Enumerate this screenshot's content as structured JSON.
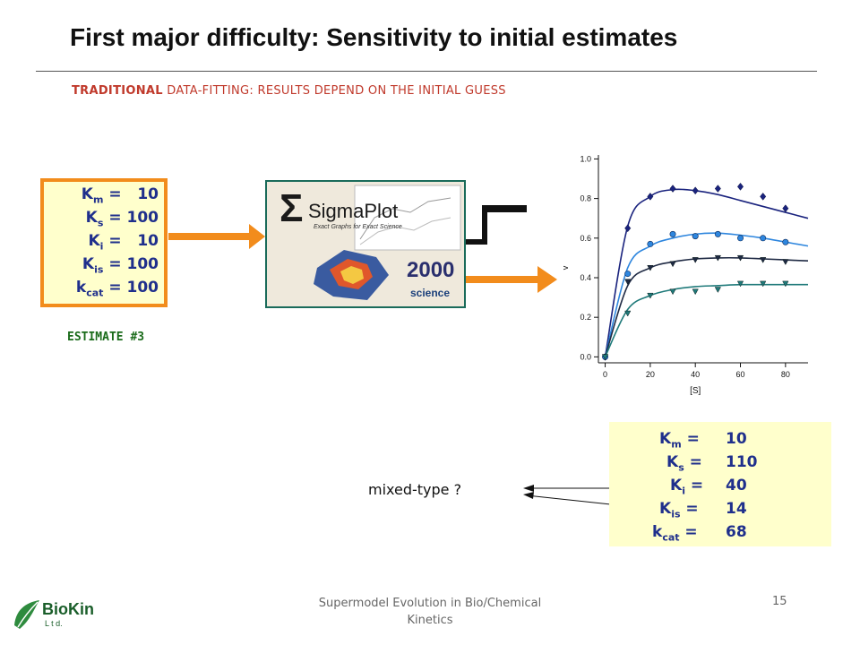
{
  "title": "First major difficulty: Sensitivity to initial estimates",
  "subtitle": {
    "bold": "TRADITIONAL",
    "rest": " DATA-FITTING: RESULTS DEPEND ON THE INITIAL GUESS"
  },
  "estimate": {
    "label": "ESTIMATE #3",
    "rows": [
      {
        "sym": "K",
        "sub": "m",
        "eq": " =   10"
      },
      {
        "sym": "K",
        "sub": "s",
        "eq": " = 100"
      },
      {
        "sym": "K",
        "sub": "i",
        "eq": " =   10"
      },
      {
        "sym": "K",
        "sub": "is",
        "eq": " = 100"
      },
      {
        "sym": "k",
        "sub": "cat",
        "eq": " = 100"
      }
    ]
  },
  "software": {
    "name": "SigmaPlot",
    "tagline": "Exact Graphs for Exact Science",
    "version": "2000",
    "vendor": "science"
  },
  "results": {
    "rows": [
      {
        "sym": "K",
        "sub": "m",
        "eq": " =",
        "val": "10"
      },
      {
        "sym": "K",
        "sub": "s",
        "eq": " =",
        "val": "110"
      },
      {
        "sym": "K",
        "sub": "i",
        "eq": " =",
        "val": "40"
      },
      {
        "sym": "K",
        "sub": "is",
        "eq": " =",
        "val": "14"
      },
      {
        "sym": "k",
        "sub": "cat",
        "eq": " =",
        "val": "68"
      }
    ]
  },
  "mixed_label": "mixed-type ?",
  "footer": {
    "text": "Supermodel Evolution in Bio/Chemical Kinetics",
    "page": "15"
  },
  "logo": {
    "text": "BioKin",
    "sub": "L t d."
  },
  "colors": {
    "orange": "#f28c1c",
    "navy": "#1f2f8c",
    "series": [
      "#1a237e",
      "#2e86de",
      "#1f2a44",
      "#1f7a7a"
    ]
  },
  "chart_data": {
    "type": "scatter",
    "xlabel": "[S]",
    "ylabel": "v",
    "xlim": [
      -3,
      90
    ],
    "ylim": [
      -0.03,
      1.02
    ],
    "xticks": [
      0,
      20,
      40,
      60,
      80
    ],
    "yticks": [
      0.0,
      0.2,
      0.4,
      0.6,
      0.8,
      1.0
    ],
    "x": [
      0,
      10,
      20,
      30,
      40,
      50,
      60,
      70,
      80
    ],
    "series": [
      {
        "marker": "diamond",
        "points": [
          0.0,
          0.65,
          0.81,
          0.85,
          0.84,
          0.85,
          0.86,
          0.81,
          0.75
        ],
        "fit": [
          0.0,
          0.66,
          0.81,
          0.845,
          0.84,
          0.82,
          0.79,
          0.76,
          0.73
        ]
      },
      {
        "marker": "circle",
        "points": [
          0.0,
          0.42,
          0.57,
          0.62,
          0.61,
          0.62,
          0.6,
          0.6,
          0.58
        ],
        "fit": [
          0.0,
          0.45,
          0.56,
          0.6,
          0.62,
          0.625,
          0.615,
          0.6,
          0.58
        ]
      },
      {
        "marker": "triangle-down",
        "points": [
          0.0,
          0.38,
          0.45,
          0.47,
          0.49,
          0.5,
          0.5,
          0.49,
          0.48
        ],
        "fit": [
          0.0,
          0.36,
          0.45,
          0.48,
          0.495,
          0.5,
          0.5,
          0.495,
          0.49
        ]
      },
      {
        "marker": "triangle-down",
        "points": [
          0.0,
          0.22,
          0.31,
          0.33,
          0.33,
          0.34,
          0.37,
          0.37,
          0.37
        ],
        "fit": [
          0.0,
          0.24,
          0.31,
          0.34,
          0.355,
          0.36,
          0.365,
          0.365,
          0.365
        ]
      }
    ]
  }
}
